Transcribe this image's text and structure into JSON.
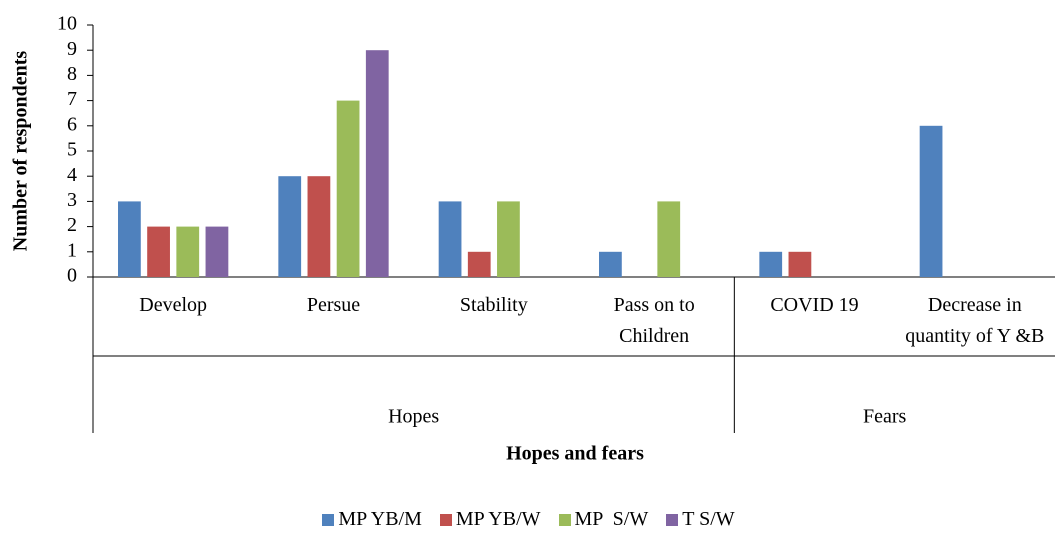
{
  "chart_data": {
    "type": "bar",
    "x_label": "Hopes and fears",
    "y_label": "Number of respondents",
    "groups": [
      {
        "name": "Hopes",
        "categories": [
          "Develop",
          "Persue",
          "Stability",
          "Pass on to Children"
        ]
      },
      {
        "name": "Fears",
        "categories": [
          "COVID 19",
          "Decrease in quantity of Y &B"
        ]
      }
    ],
    "series": [
      {
        "name": "MP YB/M",
        "color": "#4f81bd",
        "values": [
          3,
          4,
          3,
          1,
          1,
          6
        ]
      },
      {
        "name": "MP YB/W",
        "color": "#c0504d",
        "values": [
          2,
          4,
          1,
          0,
          1,
          0
        ]
      },
      {
        "name": "MP  S/W",
        "color": "#9bbb59",
        "values": [
          2,
          7,
          3,
          3,
          0,
          0
        ]
      },
      {
        "name": "T S/W",
        "color": "#8064a2",
        "values": [
          2,
          9,
          0,
          0,
          0,
          0
        ]
      }
    ],
    "ylim": [
      0,
      10
    ],
    "yticks": [
      0,
      1,
      2,
      3,
      4,
      5,
      6,
      7,
      8,
      9,
      10
    ],
    "grid": false,
    "legend": "bottom"
  }
}
